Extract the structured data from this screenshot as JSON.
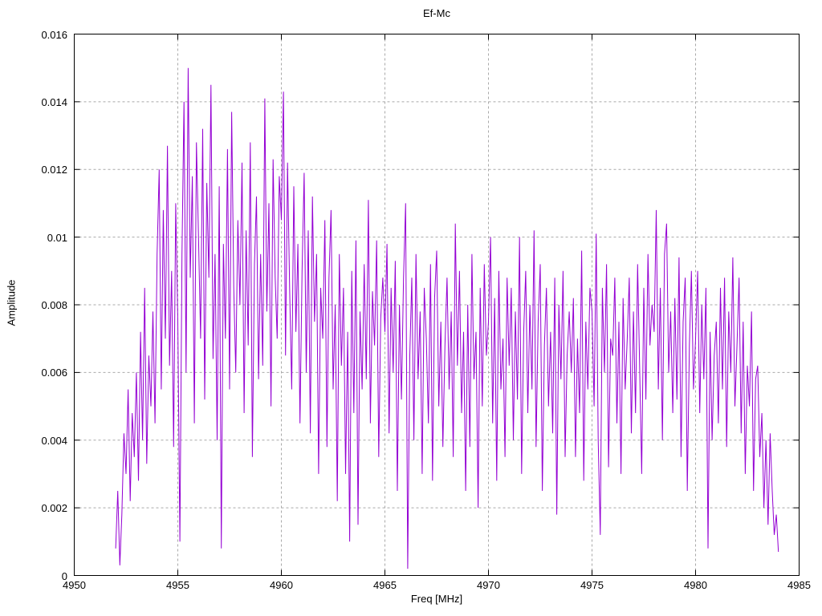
{
  "chart_data": {
    "type": "line",
    "title": "Ef-Mc",
    "xlabel": "Freq [MHz]",
    "ylabel": "Amplitude",
    "xlim": [
      4950,
      4985
    ],
    "ylim": [
      0,
      0.016
    ],
    "grid": true,
    "legend_position": "none",
    "line_color": "#9400d3",
    "grid_color": "#a9a9a9",
    "axis_color": "#000000",
    "x_tick_values": [
      4950,
      4955,
      4960,
      4965,
      4970,
      4975,
      4980,
      4985
    ],
    "x_tick_labels": [
      "4950",
      "4955",
      "4960",
      "4965",
      "4970",
      "4975",
      "4980",
      "4985"
    ],
    "y_tick_values": [
      0,
      0.002,
      0.004,
      0.006,
      0.008,
      0.01,
      0.012,
      0.014,
      0.016
    ],
    "y_tick_labels": [
      "0",
      "0.002",
      "0.004",
      "0.006",
      "0.008",
      "0.01",
      "0.012",
      "0.014",
      "0.016"
    ],
    "series": [
      {
        "name": "Ef-Mc",
        "freq_start": 4952.0,
        "freq_step": 0.1,
        "amp_scale": 0.0001,
        "values": [
          8,
          25,
          3,
          18,
          42,
          30,
          55,
          22,
          48,
          35,
          60,
          28,
          72,
          40,
          85,
          33,
          65,
          50,
          78,
          45,
          95,
          120,
          55,
          108,
          70,
          127,
          62,
          90,
          38,
          110,
          75,
          10,
          95,
          140,
          60,
          150,
          88,
          118,
          45,
          128,
          100,
          70,
          132,
          52,
          116,
          88,
          145,
          64,
          95,
          40,
          115,
          8,
          98,
          70,
          126,
          55,
          137,
          85,
          60,
          105,
          80,
          122,
          48,
          102,
          68,
          128,
          35,
          92,
          112,
          58,
          95,
          62,
          141,
          78,
          110,
          50,
          123,
          88,
          70,
          118,
          105,
          143,
          65,
          122,
          85,
          55,
          115,
          72,
          98,
          45,
          90,
          119,
          60,
          102,
          42,
          112,
          75,
          95,
          30,
          85,
          70,
          105,
          38,
          88,
          108,
          55,
          80,
          22,
          95,
          62,
          85,
          30,
          72,
          10,
          90,
          48,
          99,
          15,
          78,
          55,
          92,
          58,
          111,
          45,
          84,
          68,
          99,
          35,
          76,
          88,
          72,
          98,
          42,
          85,
          60,
          93,
          25,
          80,
          52,
          88,
          110,
          2,
          65,
          88,
          40,
          95,
          58,
          78,
          30,
          85,
          70,
          45,
          92,
          28,
          82,
          96,
          50,
          75,
          38,
          68,
          88,
          55,
          78,
          35,
          104,
          62,
          90,
          48,
          72,
          25,
          80,
          38,
          95,
          58,
          72,
          20,
          85,
          50,
          92,
          65,
          75,
          100,
          45,
          82,
          28,
          90,
          55,
          70,
          35,
          88,
          62,
          85,
          40,
          78,
          52,
          100,
          30,
          72,
          90,
          48,
          80,
          55,
          102,
          38,
          75,
          92,
          25,
          68,
          85,
          50,
          72,
          42,
          88,
          18,
          80,
          58,
          90,
          35,
          65,
          78,
          60,
          82,
          35,
          70,
          48,
          96,
          28,
          75,
          55,
          85,
          78,
          50,
          101,
          40,
          12,
          85,
          60,
          92,
          32,
          70,
          65,
          88,
          45,
          75,
          30,
          82,
          55,
          70,
          88,
          42,
          78,
          48,
          92,
          62,
          30,
          85,
          52,
          95,
          68,
          80,
          72,
          108,
          55,
          85,
          40,
          95,
          104,
          60,
          78,
          48,
          82,
          52,
          94,
          35,
          75,
          88,
          25,
          68,
          90,
          55,
          70,
          90,
          48,
          80,
          58,
          85,
          8,
          72,
          40,
          65,
          75,
          45,
          85,
          55,
          88,
          38,
          78,
          60,
          94,
          50,
          68,
          88,
          42,
          75,
          30,
          62,
          50,
          78,
          25,
          58,
          62,
          35,
          48,
          20,
          40,
          15,
          42,
          25,
          12,
          18,
          7
        ]
      }
    ]
  }
}
